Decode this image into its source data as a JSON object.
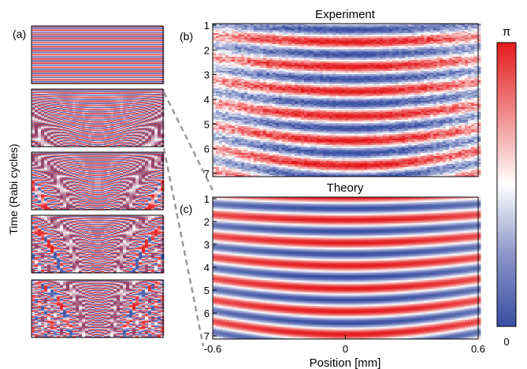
{
  "panel_labels": {
    "a": "(a)",
    "b": "(b)",
    "c": "(c)"
  },
  "left_ylabel": "Time (Rabi cycles)",
  "colorbar": {
    "top_label": "π",
    "bottom_label": "0",
    "low_color": "#3a4fa3",
    "mid_color": "#ffffff",
    "high_color": "#e41a1c"
  },
  "chart_data": [
    {
      "type": "heatmap",
      "title": "Experiment",
      "panel": "(b)",
      "yticks": [
        "1",
        "2",
        "3",
        "4",
        "5",
        "6",
        "7"
      ],
      "ylim": [
        1,
        7
      ],
      "colormap": [
        "#3a4fa3",
        "#ffffff",
        "#e41a1c"
      ],
      "value_range": [
        0,
        3.1416
      ]
    },
    {
      "type": "heatmap",
      "title": "Theory",
      "panel": "(c)",
      "xlabel": "Position [mm]",
      "xticks": [
        "-0.6",
        "0",
        "0.6"
      ],
      "xlim": [
        -0.6,
        0.6
      ],
      "yticks": [
        "1",
        "2",
        "3",
        "4",
        "5",
        "6",
        "7"
      ],
      "ylim": [
        1,
        7
      ],
      "colormap": [
        "#3a4fa3",
        "#ffffff",
        "#e41a1c"
      ],
      "value_range": [
        0,
        3.1416
      ]
    }
  ]
}
